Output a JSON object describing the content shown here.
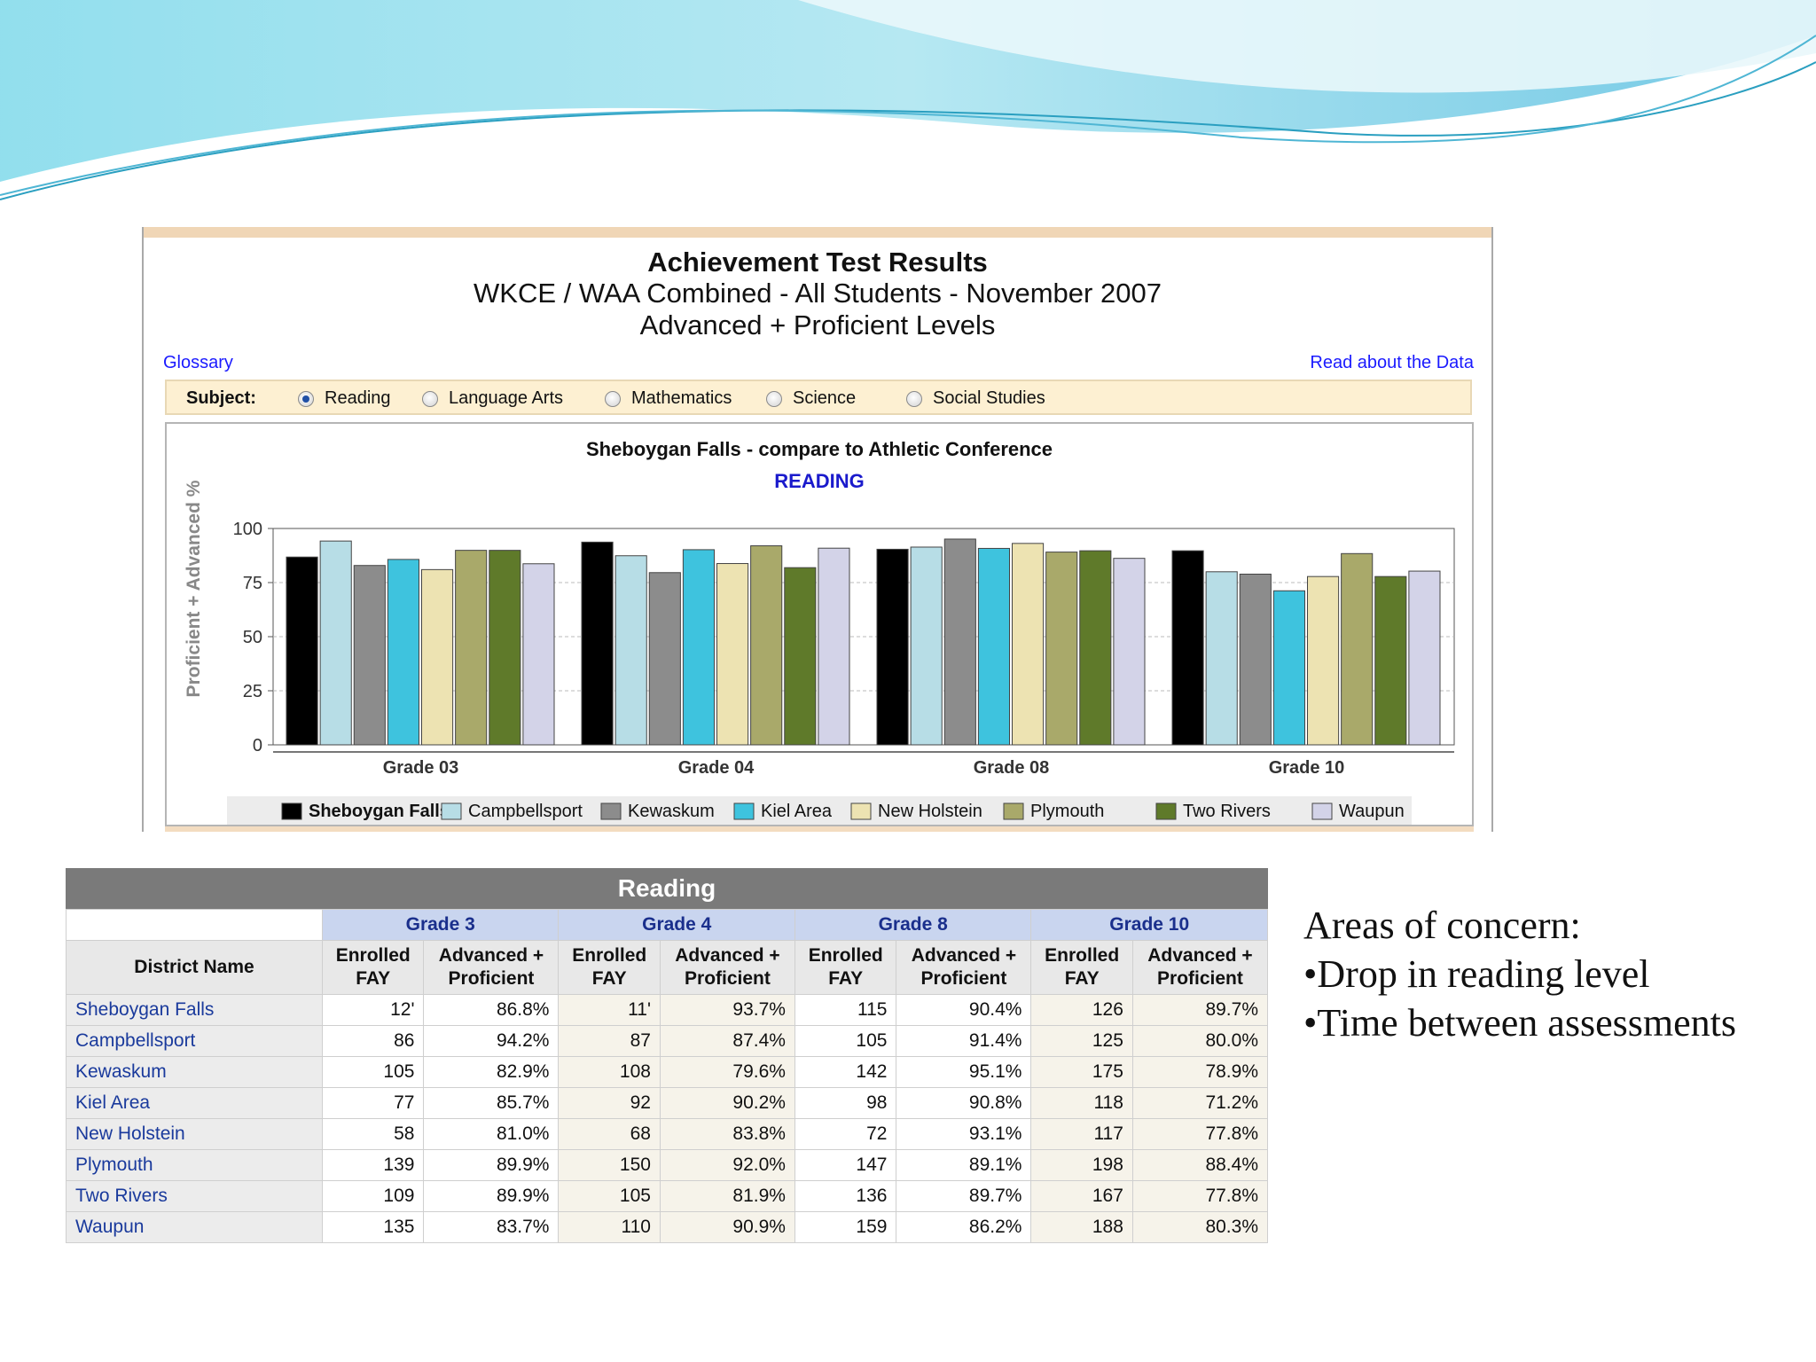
{
  "report": {
    "title": "Achievement Test Results",
    "subtitle": "WKCE / WAA Combined - All Students - November 2007",
    "levels": "Advanced + Proficient Levels",
    "glossary_link": "Glossary",
    "read_link": "Read about the Data",
    "subject_label": "Subject:",
    "subjects": [
      "Reading",
      "Language Arts",
      "Mathematics",
      "Science",
      "Social Studies"
    ],
    "selected_subject": "Reading"
  },
  "chart_data": {
    "type": "bar",
    "title": "Sheboygan Falls - compare to Athletic Conference",
    "subtitle": "READING",
    "ylabel": "Proficient + Advanced %",
    "xlabel": "",
    "ylim": [
      0,
      100
    ],
    "yticks": [
      0,
      25,
      50,
      75,
      100
    ],
    "grid": true,
    "legend_position": "bottom",
    "categories": [
      "Grade 03",
      "Grade 04",
      "Grade 08",
      "Grade 10"
    ],
    "series": [
      {
        "name": "Sheboygan Falls",
        "color": "#000000",
        "values": [
          86.8,
          93.7,
          90.4,
          89.7
        ]
      },
      {
        "name": "Campbellsport",
        "color": "#b7dde6",
        "values": [
          94.2,
          87.4,
          91.4,
          80.0
        ]
      },
      {
        "name": "Kewaskum",
        "color": "#8c8c8c",
        "values": [
          82.9,
          79.6,
          95.1,
          78.9
        ]
      },
      {
        "name": "Kiel Area",
        "color": "#3ec3de",
        "values": [
          85.7,
          90.2,
          90.8,
          71.2
        ]
      },
      {
        "name": "New Holstein",
        "color": "#ede3b2",
        "values": [
          81.0,
          83.8,
          93.1,
          77.8
        ]
      },
      {
        "name": "Plymouth",
        "color": "#a9a96a",
        "values": [
          89.9,
          92.0,
          89.1,
          88.4
        ]
      },
      {
        "name": "Two Rivers",
        "color": "#5f7a2a",
        "values": [
          89.9,
          81.9,
          89.7,
          77.8
        ]
      },
      {
        "name": "Waupun",
        "color": "#d3d3e8",
        "values": [
          83.7,
          90.9,
          86.2,
          80.3
        ]
      }
    ]
  },
  "table": {
    "header": "Reading",
    "district_col": "District Name",
    "grades": [
      "Grade 3",
      "Grade 4",
      "Grade 8",
      "Grade 10"
    ],
    "sub_enrolled": [
      "Enrolled",
      "FAY"
    ],
    "sub_advanced": [
      "Advanced +",
      "Proficient"
    ],
    "rows": [
      {
        "name": "Sheboygan Falls",
        "cells": [
          "12'",
          "86.8%",
          "11'",
          "93.7%",
          "115",
          "90.4%",
          "126",
          "89.7%"
        ]
      },
      {
        "name": "Campbellsport",
        "cells": [
          "86",
          "94.2%",
          "87",
          "87.4%",
          "105",
          "91.4%",
          "125",
          "80.0%"
        ]
      },
      {
        "name": "Kewaskum",
        "cells": [
          "105",
          "82.9%",
          "108",
          "79.6%",
          "142",
          "95.1%",
          "175",
          "78.9%"
        ]
      },
      {
        "name": "Kiel Area",
        "cells": [
          "77",
          "85.7%",
          "92",
          "90.2%",
          "98",
          "90.8%",
          "118",
          "71.2%"
        ]
      },
      {
        "name": "New Holstein",
        "cells": [
          "58",
          "81.0%",
          "68",
          "83.8%",
          "72",
          "93.1%",
          "117",
          "77.8%"
        ]
      },
      {
        "name": "Plymouth",
        "cells": [
          "139",
          "89.9%",
          "150",
          "92.0%",
          "147",
          "89.1%",
          "198",
          "88.4%"
        ]
      },
      {
        "name": "Two Rivers",
        "cells": [
          "109",
          "89.9%",
          "105",
          "81.9%",
          "136",
          "89.7%",
          "167",
          "77.8%"
        ]
      },
      {
        "name": "Waupun",
        "cells": [
          "135",
          "83.7%",
          "110",
          "90.9%",
          "159",
          "86.2%",
          "188",
          "80.3%"
        ]
      }
    ]
  },
  "notes": {
    "heading": "Areas of concern:",
    "items": [
      "•Drop in reading level",
      "•Time between assessments"
    ]
  },
  "colors": {
    "wave_light": "#9fe3ef",
    "wave_dark": "#2aa7c9",
    "link": "#1a1aff",
    "table_header": "#7a7a7a",
    "grade_header": "#c9d5ef"
  }
}
